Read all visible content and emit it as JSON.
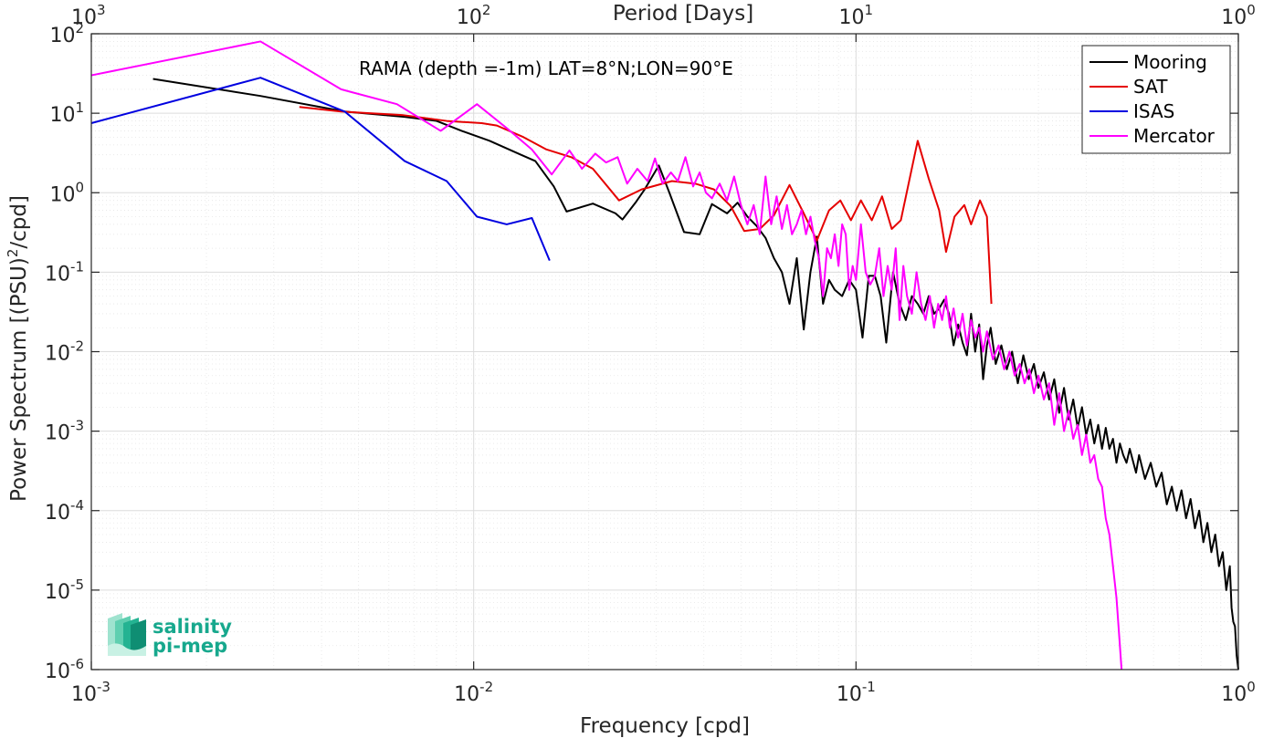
{
  "chart_data": {
    "type": "line",
    "annotation": "RAMA (depth =-1m) LAT=8°N;LON=90°E",
    "xlabel": "Frequency [cpd]",
    "ylabel": "Power Spectrum [(PSU)",
    "ylabel_exponent": "2",
    "ylabel_suffix": "/cpd]",
    "top_xlabel": "Period [Days]",
    "xscale": "log",
    "yscale": "log",
    "xlim": [
      0.001,
      1
    ],
    "ylim": [
      1e-06,
      100
    ],
    "grid": true,
    "legend_position": "top-right",
    "x_ticks": [
      {
        "value": 0.001,
        "base": "10",
        "exp": "-3"
      },
      {
        "value": 0.01,
        "base": "10",
        "exp": "-2"
      },
      {
        "value": 0.1,
        "base": "10",
        "exp": "-1"
      },
      {
        "value": 1,
        "base": "10",
        "exp": "0"
      }
    ],
    "top_x_ticks": [
      {
        "value": 0.001,
        "base": "10",
        "exp": "3"
      },
      {
        "value": 0.01,
        "base": "10",
        "exp": "2"
      },
      {
        "value": 0.1,
        "base": "10",
        "exp": "1"
      },
      {
        "value": 1,
        "base": "10",
        "exp": "0"
      }
    ],
    "y_ticks": [
      {
        "value": 100,
        "base": "10",
        "exp": "2"
      },
      {
        "value": 10,
        "base": "10",
        "exp": "1"
      },
      {
        "value": 1,
        "base": "10",
        "exp": "0"
      },
      {
        "value": 0.1,
        "base": "10",
        "exp": "-1"
      },
      {
        "value": 0.01,
        "base": "10",
        "exp": "-2"
      },
      {
        "value": 0.001,
        "base": "10",
        "exp": "-3"
      },
      {
        "value": 0.0001,
        "base": "10",
        "exp": "-4"
      },
      {
        "value": 1e-05,
        "base": "10",
        "exp": "-5"
      },
      {
        "value": 1e-06,
        "base": "10",
        "exp": "-6"
      }
    ],
    "series": [
      {
        "name": "Mooring",
        "color": "#000000",
        "points": [
          [
            0.00145,
            27
          ],
          [
            0.00277,
            16.5
          ],
          [
            0.0046,
            10.5
          ],
          [
            0.0066,
            9
          ],
          [
            0.008,
            8
          ],
          [
            0.0093,
            6
          ],
          [
            0.011,
            4.5
          ],
          [
            0.0133,
            3
          ],
          [
            0.0145,
            2.5
          ],
          [
            0.0162,
            1.2
          ],
          [
            0.0175,
            0.58
          ],
          [
            0.0205,
            0.73
          ],
          [
            0.0235,
            0.55
          ],
          [
            0.0245,
            0.46
          ],
          [
            0.0265,
            0.75
          ],
          [
            0.028,
            1.1
          ],
          [
            0.0305,
            2.2
          ],
          [
            0.0325,
            1
          ],
          [
            0.0355,
            0.32
          ],
          [
            0.039,
            0.3
          ],
          [
            0.042,
            0.72
          ],
          [
            0.046,
            0.55
          ],
          [
            0.049,
            0.75
          ],
          [
            0.052,
            0.5
          ],
          [
            0.055,
            0.38
          ],
          [
            0.058,
            0.27
          ],
          [
            0.061,
            0.15
          ],
          [
            0.064,
            0.1
          ],
          [
            0.067,
            0.04
          ],
          [
            0.07,
            0.15
          ],
          [
            0.073,
            0.019
          ],
          [
            0.076,
            0.1
          ],
          [
            0.079,
            0.28
          ],
          [
            0.082,
            0.04
          ],
          [
            0.085,
            0.08
          ],
          [
            0.088,
            0.06
          ],
          [
            0.092,
            0.05
          ],
          [
            0.096,
            0.08
          ],
          [
            0.1,
            0.06
          ],
          [
            0.104,
            0.015
          ],
          [
            0.108,
            0.09
          ],
          [
            0.112,
            0.09
          ],
          [
            0.116,
            0.05
          ],
          [
            0.12,
            0.013
          ],
          [
            0.125,
            0.1
          ],
          [
            0.13,
            0.04
          ],
          [
            0.135,
            0.025
          ],
          [
            0.14,
            0.05
          ],
          [
            0.145,
            0.04
          ],
          [
            0.15,
            0.03
          ],
          [
            0.155,
            0.05
          ],
          [
            0.16,
            0.03
          ],
          [
            0.165,
            0.035
          ],
          [
            0.17,
            0.045
          ],
          [
            0.175,
            0.03
          ],
          [
            0.18,
            0.012
          ],
          [
            0.185,
            0.022
          ],
          [
            0.19,
            0.013
          ],
          [
            0.195,
            0.009
          ],
          [
            0.2,
            0.03
          ],
          [
            0.205,
            0.01
          ],
          [
            0.21,
            0.022
          ],
          [
            0.215,
            0.0045
          ],
          [
            0.22,
            0.012
          ],
          [
            0.225,
            0.02
          ],
          [
            0.232,
            0.007
          ],
          [
            0.24,
            0.012
          ],
          [
            0.248,
            0.006
          ],
          [
            0.256,
            0.01
          ],
          [
            0.265,
            0.004
          ],
          [
            0.274,
            0.009
          ],
          [
            0.283,
            0.0045
          ],
          [
            0.292,
            0.007
          ],
          [
            0.3,
            0.0035
          ],
          [
            0.31,
            0.0055
          ],
          [
            0.32,
            0.0025
          ],
          [
            0.33,
            0.0045
          ],
          [
            0.34,
            0.0017
          ],
          [
            0.35,
            0.0035
          ],
          [
            0.36,
            0.0014
          ],
          [
            0.37,
            0.0025
          ],
          [
            0.38,
            0.0011
          ],
          [
            0.39,
            0.002
          ],
          [
            0.4,
            0.0009
          ],
          [
            0.41,
            0.0014
          ],
          [
            0.42,
            0.0007
          ],
          [
            0.43,
            0.0012
          ],
          [
            0.44,
            0.0006
          ],
          [
            0.45,
            0.0011
          ],
          [
            0.46,
            0.0006
          ],
          [
            0.47,
            0.0008
          ],
          [
            0.48,
            0.0004
          ],
          [
            0.49,
            0.0007
          ],
          [
            0.5,
            0.0005
          ],
          [
            0.51,
            0.0004
          ],
          [
            0.52,
            0.0006
          ],
          [
            0.54,
            0.0003
          ],
          [
            0.55,
            0.0005
          ],
          [
            0.57,
            0.00025
          ],
          [
            0.59,
            0.0004
          ],
          [
            0.61,
            0.0002
          ],
          [
            0.63,
            0.0003
          ],
          [
            0.65,
            0.00012
          ],
          [
            0.67,
            0.0002
          ],
          [
            0.69,
            0.0001
          ],
          [
            0.71,
            0.00018
          ],
          [
            0.73,
            8e-05
          ],
          [
            0.75,
            0.00014
          ],
          [
            0.77,
            6e-05
          ],
          [
            0.79,
            0.0001
          ],
          [
            0.81,
            4e-05
          ],
          [
            0.83,
            7e-05
          ],
          [
            0.85,
            3e-05
          ],
          [
            0.87,
            5e-05
          ],
          [
            0.89,
            2e-05
          ],
          [
            0.91,
            3e-05
          ],
          [
            0.93,
            1e-05
          ],
          [
            0.95,
            2e-05
          ],
          [
            0.96,
            6e-06
          ],
          [
            0.97,
            4e-06
          ],
          [
            0.98,
            3.5e-06
          ],
          [
            0.99,
            1.5e-06
          ],
          [
            1.0,
            1e-06
          ]
        ]
      },
      {
        "name": "SAT",
        "color": "#e50000",
        "points": [
          [
            0.0035,
            12
          ],
          [
            0.0045,
            10.5
          ],
          [
            0.0065,
            9.5
          ],
          [
            0.0085,
            8
          ],
          [
            0.0105,
            7.5
          ],
          [
            0.0115,
            7
          ],
          [
            0.0135,
            5
          ],
          [
            0.0155,
            3.5
          ],
          [
            0.018,
            2.8
          ],
          [
            0.0205,
            2
          ],
          [
            0.024,
            0.8
          ],
          [
            0.0275,
            1.1
          ],
          [
            0.033,
            1.4
          ],
          [
            0.038,
            1.3
          ],
          [
            0.0425,
            1.1
          ],
          [
            0.047,
            0.68
          ],
          [
            0.051,
            0.33
          ],
          [
            0.056,
            0.35
          ],
          [
            0.061,
            0.52
          ],
          [
            0.067,
            1.25
          ],
          [
            0.073,
            0.55
          ],
          [
            0.079,
            0.25
          ],
          [
            0.085,
            0.6
          ],
          [
            0.091,
            0.8
          ],
          [
            0.097,
            0.45
          ],
          [
            0.103,
            0.8
          ],
          [
            0.11,
            0.45
          ],
          [
            0.117,
            0.9
          ],
          [
            0.124,
            0.35
          ],
          [
            0.131,
            0.45
          ],
          [
            0.145,
            4.5
          ],
          [
            0.155,
            1.5
          ],
          [
            0.165,
            0.6
          ],
          [
            0.172,
            0.18
          ],
          [
            0.181,
            0.5
          ],
          [
            0.192,
            0.7
          ],
          [
            0.2,
            0.4
          ],
          [
            0.211,
            0.8
          ],
          [
            0.22,
            0.5
          ],
          [
            0.226,
            0.04
          ]
        ]
      },
      {
        "name": "ISAS",
        "color": "#0000e0",
        "points": [
          [
            0.001,
            7.5
          ],
          [
            0.00277,
            28
          ],
          [
            0.0046,
            10.5
          ],
          [
            0.0066,
            2.5
          ],
          [
            0.0085,
            1.4
          ],
          [
            0.0102,
            0.5
          ],
          [
            0.0122,
            0.4
          ],
          [
            0.0142,
            0.48
          ],
          [
            0.0158,
            0.14
          ]
        ]
      },
      {
        "name": "Mercator",
        "color": "#ff00ff",
        "points": [
          [
            0.001,
            30
          ],
          [
            0.00277,
            80
          ],
          [
            0.0045,
            20
          ],
          [
            0.0063,
            13
          ],
          [
            0.0082,
            6
          ],
          [
            0.0102,
            13
          ],
          [
            0.0122,
            6.5
          ],
          [
            0.0142,
            3.5
          ],
          [
            0.016,
            1.7
          ],
          [
            0.0178,
            3.4
          ],
          [
            0.0192,
            2
          ],
          [
            0.0208,
            3.1
          ],
          [
            0.0222,
            2.4
          ],
          [
            0.0238,
            2.8
          ],
          [
            0.0252,
            1.3
          ],
          [
            0.0268,
            2
          ],
          [
            0.0285,
            1.4
          ],
          [
            0.0298,
            2.7
          ],
          [
            0.0312,
            1.3
          ],
          [
            0.0328,
            1.8
          ],
          [
            0.0342,
            1.4
          ],
          [
            0.0358,
            2.8
          ],
          [
            0.0375,
            1.2
          ],
          [
            0.039,
            1.8
          ],
          [
            0.0405,
            1
          ],
          [
            0.042,
            0.85
          ],
          [
            0.044,
            1.3
          ],
          [
            0.046,
            0.8
          ],
          [
            0.048,
            1.6
          ],
          [
            0.05,
            0.7
          ],
          [
            0.052,
            0.4
          ],
          [
            0.054,
            0.7
          ],
          [
            0.056,
            0.3
          ],
          [
            0.058,
            1.6
          ],
          [
            0.06,
            0.4
          ],
          [
            0.062,
            0.9
          ],
          [
            0.064,
            0.35
          ],
          [
            0.066,
            0.7
          ],
          [
            0.068,
            0.3
          ],
          [
            0.07,
            0.4
          ],
          [
            0.072,
            0.6
          ],
          [
            0.074,
            0.3
          ],
          [
            0.076,
            0.5
          ],
          [
            0.078,
            0.25
          ],
          [
            0.08,
            0.15
          ],
          [
            0.082,
            0.05
          ],
          [
            0.084,
            0.2
          ],
          [
            0.086,
            0.15
          ],
          [
            0.088,
            0.3
          ],
          [
            0.09,
            0.12
          ],
          [
            0.092,
            0.4
          ],
          [
            0.094,
            0.3
          ],
          [
            0.096,
            0.06
          ],
          [
            0.098,
            0.12
          ],
          [
            0.1,
            0.08
          ],
          [
            0.103,
            0.4
          ],
          [
            0.106,
            0.1
          ],
          [
            0.109,
            0.07
          ],
          [
            0.112,
            0.09
          ],
          [
            0.115,
            0.2
          ],
          [
            0.118,
            0.05
          ],
          [
            0.121,
            0.12
          ],
          [
            0.124,
            0.06
          ],
          [
            0.127,
            0.2
          ],
          [
            0.13,
            0.025
          ],
          [
            0.133,
            0.12
          ],
          [
            0.136,
            0.05
          ],
          [
            0.14,
            0.03
          ],
          [
            0.144,
            0.1
          ],
          [
            0.148,
            0.04
          ],
          [
            0.152,
            0.025
          ],
          [
            0.156,
            0.05
          ],
          [
            0.16,
            0.02
          ],
          [
            0.164,
            0.04
          ],
          [
            0.168,
            0.025
          ],
          [
            0.172,
            0.05
          ],
          [
            0.176,
            0.02
          ],
          [
            0.18,
            0.035
          ],
          [
            0.185,
            0.015
          ],
          [
            0.19,
            0.03
          ],
          [
            0.195,
            0.012
          ],
          [
            0.2,
            0.025
          ],
          [
            0.205,
            0.015
          ],
          [
            0.21,
            0.02
          ],
          [
            0.215,
            0.01
          ],
          [
            0.22,
            0.018
          ],
          [
            0.228,
            0.008
          ],
          [
            0.236,
            0.012
          ],
          [
            0.244,
            0.006
          ],
          [
            0.252,
            0.01
          ],
          [
            0.26,
            0.005
          ],
          [
            0.268,
            0.007
          ],
          [
            0.276,
            0.004
          ],
          [
            0.284,
            0.006
          ],
          [
            0.292,
            0.003
          ],
          [
            0.3,
            0.005
          ],
          [
            0.31,
            0.0025
          ],
          [
            0.32,
            0.004
          ],
          [
            0.33,
            0.0012
          ],
          [
            0.34,
            0.003
          ],
          [
            0.35,
            0.001
          ],
          [
            0.36,
            0.0018
          ],
          [
            0.37,
            0.0008
          ],
          [
            0.38,
            0.0012
          ],
          [
            0.39,
            0.0005
          ],
          [
            0.4,
            0.0009
          ],
          [
            0.41,
            0.0004
          ],
          [
            0.42,
            0.0005
          ],
          [
            0.43,
            0.00025
          ],
          [
            0.44,
            0.0002
          ],
          [
            0.45,
            8e-05
          ],
          [
            0.46,
            5e-05
          ],
          [
            0.47,
            2e-05
          ],
          [
            0.48,
            8e-06
          ],
          [
            0.49,
            2e-06
          ],
          [
            0.495,
            1e-06
          ]
        ]
      }
    ]
  },
  "logo": {
    "line1": "salinity",
    "line2": "pi-mep",
    "color": "#17a88d"
  }
}
